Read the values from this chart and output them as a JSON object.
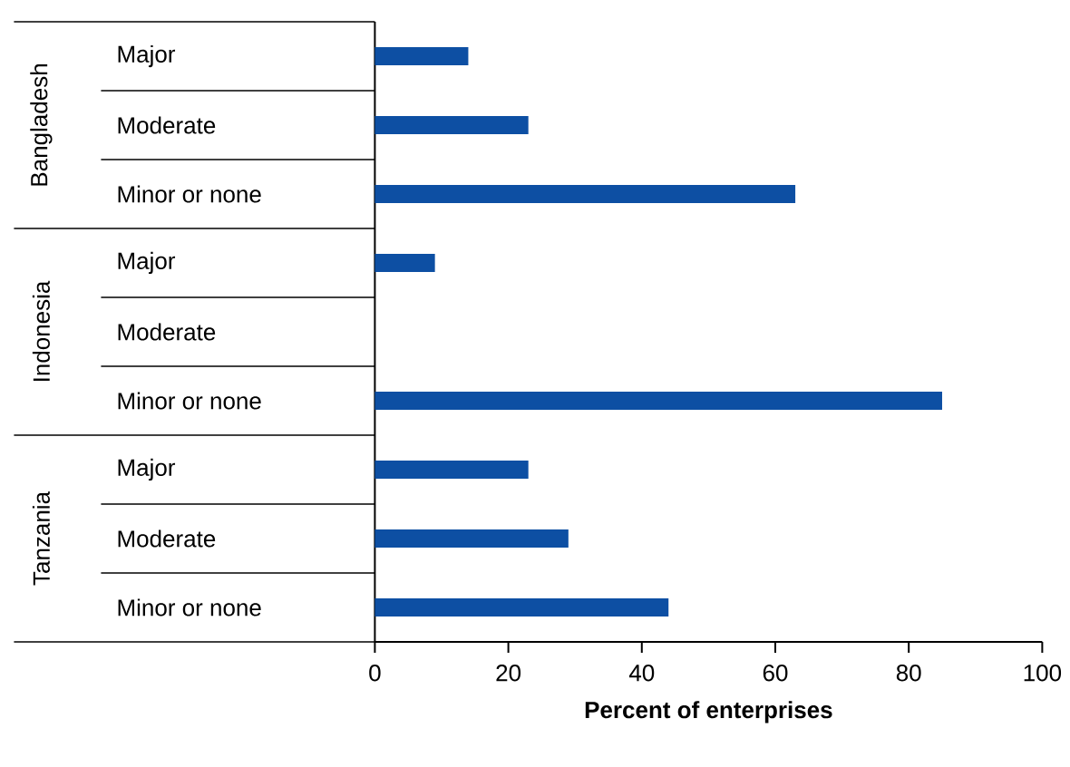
{
  "chart_data": {
    "type": "bar",
    "orientation": "horizontal",
    "categories": [
      "Major",
      "Moderate",
      "Minor or none",
      "Major",
      "Moderate",
      "Minor or none",
      "Major",
      "Moderate",
      "Minor or none"
    ],
    "values": [
      14,
      23,
      63,
      9,
      null,
      85,
      23,
      29,
      44
    ],
    "color": "#0d4fa3",
    "xlim": [
      0,
      100
    ],
    "xticks": [
      0,
      20,
      40,
      60,
      80,
      100
    ],
    "xlabel": "Percent of enterprises",
    "annotations": [
      "Bangladesh",
      "Indonesia",
      "Tanzania"
    ]
  }
}
